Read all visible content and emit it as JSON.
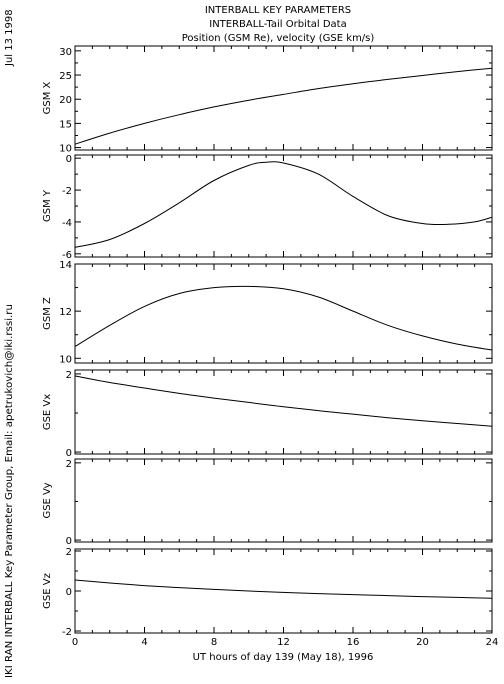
{
  "header": {
    "title": "INTERBALL KEY PARAMETERS",
    "subtitle": "INTERBALL-Tail Orbital Data",
    "description": "Position (GSM Re), velocity (GSE km/s)"
  },
  "side_text": {
    "date": "Jul 13 1998",
    "credit": "IKI RAN INTERBALL Key Parameter Group, Email: apetrukovich@iki.rssi.ru"
  },
  "chart_data": {
    "type": "line",
    "x_label": "UT hours of day 139 (May 18), 1996",
    "x_range": [
      0,
      24
    ],
    "x_ticks": [
      0,
      4,
      8,
      12,
      16,
      20,
      24
    ],
    "panels": [
      {
        "ylabel": "GSM X",
        "ylim": [
          9.5,
          31
        ],
        "yticks": [
          10,
          15,
          20,
          25,
          30
        ],
        "x": [
          0,
          2,
          4,
          6,
          8,
          10,
          12,
          14,
          16,
          18,
          20,
          22,
          24
        ],
        "values": [
          10.7,
          13.0,
          15.0,
          16.8,
          18.4,
          19.8,
          21.0,
          22.2,
          23.2,
          24.1,
          24.9,
          25.7,
          26.4
        ]
      },
      {
        "ylabel": "GSM Y",
        "ylim": [
          -6.2,
          0.2
        ],
        "yticks": [
          -6,
          -4,
          -2,
          0
        ],
        "x": [
          0,
          2,
          4,
          6,
          8,
          10,
          11,
          12,
          14,
          16,
          18,
          20,
          21.5,
          23,
          24
        ],
        "values": [
          -5.6,
          -5.1,
          -4.1,
          -2.8,
          -1.4,
          -0.45,
          -0.25,
          -0.3,
          -1.0,
          -2.4,
          -3.6,
          -4.1,
          -4.15,
          -4.0,
          -3.7
        ]
      },
      {
        "ylabel": "GSM Z",
        "ylim": [
          9.8,
          14.0
        ],
        "yticks": [
          10,
          12,
          14
        ],
        "x": [
          0,
          2,
          4,
          6,
          8,
          10,
          12,
          14,
          16,
          18,
          20,
          22,
          24
        ],
        "values": [
          10.5,
          11.4,
          12.2,
          12.75,
          13.0,
          13.05,
          12.95,
          12.6,
          12.0,
          11.4,
          10.95,
          10.6,
          10.35
        ]
      },
      {
        "ylabel": "GSE Vx",
        "ylim": [
          -0.05,
          2.1
        ],
        "yticks": [
          0,
          2
        ],
        "x": [
          0,
          2,
          4,
          6,
          8,
          10,
          12,
          14,
          16,
          18,
          20,
          22,
          24
        ],
        "values": [
          1.95,
          1.78,
          1.64,
          1.5,
          1.38,
          1.27,
          1.16,
          1.06,
          0.97,
          0.88,
          0.8,
          0.73,
          0.66
        ]
      },
      {
        "ylabel": "GSE Vy",
        "ylim": [
          -0.05,
          2.1
        ],
        "yticks": [
          0,
          2
        ],
        "x": [],
        "values": []
      },
      {
        "ylabel": "GSE Vz",
        "ylim": [
          -2.1,
          2.1
        ],
        "yticks": [
          -2,
          0,
          2
        ],
        "x": [
          0,
          2,
          4,
          6,
          8,
          10,
          12,
          14,
          16,
          18,
          20,
          22,
          24
        ],
        "values": [
          0.55,
          0.4,
          0.27,
          0.17,
          0.08,
          0.0,
          -0.07,
          -0.13,
          -0.18,
          -0.23,
          -0.28,
          -0.32,
          -0.36
        ]
      }
    ],
    "grid": false,
    "legend": "none"
  }
}
